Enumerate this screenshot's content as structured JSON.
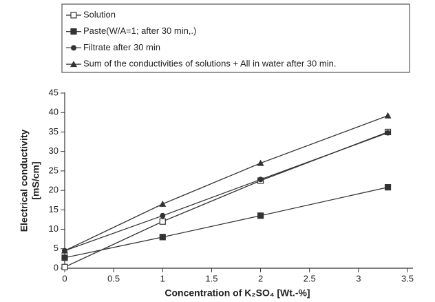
{
  "chart_data": {
    "type": "line",
    "xlabel": "Concentration of K₂SO₄ [Wt.-%]",
    "ylabel": [
      "Electrical conductivity",
      "[mS/cm]"
    ],
    "x": [
      0,
      1,
      2,
      3.3
    ],
    "series": [
      {
        "name": "Solution",
        "color": "#333333",
        "marker": "open-square",
        "values": [
          0.3,
          12,
          22.5,
          35
        ]
      },
      {
        "name": "Paste(W/A=1; after 30 min,.)",
        "color": "#333333",
        "marker": "square",
        "values": [
          2.7,
          8,
          13.5,
          20.8
        ]
      },
      {
        "name": "Filtrate after 30 min",
        "color": "#333333",
        "marker": "circle",
        "values": [
          4.5,
          13.5,
          22.8,
          34.8
        ]
      },
      {
        "name": "Sum of the conductivities of solutions + All in water after 30 min.",
        "color": "#333333",
        "marker": "triangle",
        "values": [
          4.5,
          16.5,
          27,
          39.2
        ]
      }
    ],
    "xlim": [
      0,
      3.5
    ],
    "xticks": [
      0,
      0.5,
      1,
      1.5,
      2,
      2.5,
      3,
      3.5
    ],
    "ylim": [
      0,
      45
    ],
    "yticks": [
      0,
      5,
      10,
      15,
      20,
      25,
      30,
      35,
      40,
      45
    ],
    "grid": false,
    "legend": "top"
  }
}
